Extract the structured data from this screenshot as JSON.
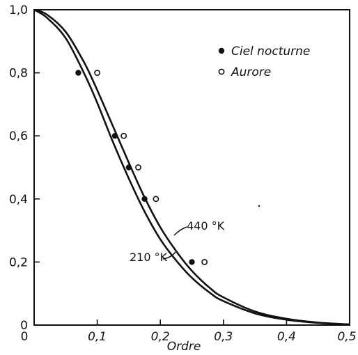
{
  "chart_data": {
    "type": "scatter",
    "xlabel": "Ordre",
    "ylabel": "",
    "xlim": [
      0,
      0.5
    ],
    "ylim": [
      0,
      1.0
    ],
    "grid": false,
    "legend_position": "top-right",
    "x_ticks": [
      "0,1",
      "0,2",
      "0,3",
      "0,4",
      "0,5"
    ],
    "x_tick_values": [
      0.1,
      0.2,
      0.3,
      0.4,
      0.5
    ],
    "x_origin_label": "0",
    "y_ticks": [
      "0",
      "0,2",
      "0,4",
      "0,6",
      "0,8",
      "1,0"
    ],
    "y_tick_values": [
      0,
      0.2,
      0.4,
      0.6,
      0.8,
      1.0
    ],
    "series": [
      {
        "name": "Ciel nocturne",
        "marker": "filled-circle",
        "x": [
          0.07,
          0.128,
          0.15,
          0.175,
          0.25
        ],
        "y": [
          0.8,
          0.6,
          0.5,
          0.4,
          0.2
        ]
      },
      {
        "name": "Aurore",
        "marker": "open-circle",
        "x": [
          0.1,
          0.142,
          0.165,
          0.193,
          0.27
        ],
        "y": [
          0.8,
          0.6,
          0.5,
          0.4,
          0.2
        ]
      }
    ],
    "curves": [
      {
        "label": "440 °K",
        "x": [
          0.0,
          0.02,
          0.05,
          0.08,
          0.1,
          0.125,
          0.15,
          0.175,
          0.2,
          0.225,
          0.25,
          0.28,
          0.3,
          0.35,
          0.4,
          0.45,
          0.5
        ],
        "y": [
          1.0,
          0.985,
          0.93,
          0.83,
          0.745,
          0.63,
          0.515,
          0.405,
          0.31,
          0.235,
          0.172,
          0.115,
          0.088,
          0.043,
          0.02,
          0.008,
          0.002
        ]
      },
      {
        "label": "210 °K",
        "x": [
          0.0,
          0.02,
          0.05,
          0.08,
          0.1,
          0.125,
          0.15,
          0.175,
          0.2,
          0.225,
          0.25,
          0.28,
          0.3,
          0.35,
          0.4,
          0.45,
          0.5
        ],
        "y": [
          1.0,
          0.975,
          0.91,
          0.795,
          0.705,
          0.58,
          0.465,
          0.36,
          0.272,
          0.205,
          0.15,
          0.1,
          0.076,
          0.037,
          0.017,
          0.007,
          0.002
        ]
      }
    ]
  },
  "colors": {
    "ink": "#111111",
    "background": "#ffffff"
  }
}
